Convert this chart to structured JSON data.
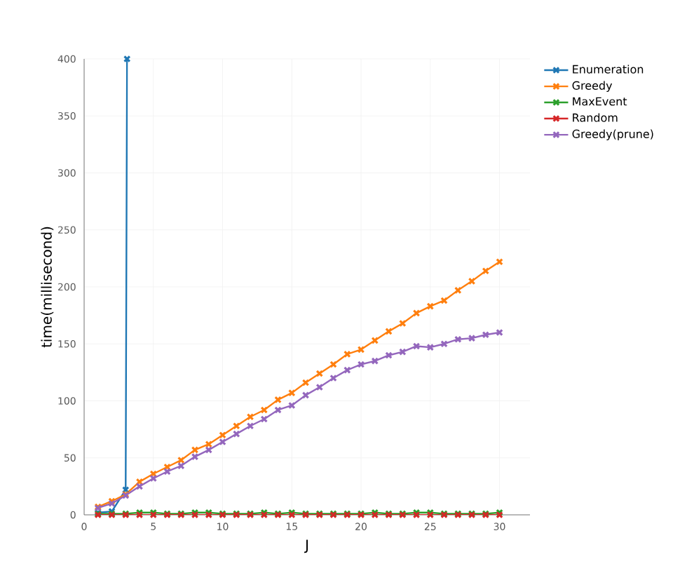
{
  "chart_data": {
    "type": "line",
    "xlabel": "J",
    "ylabel": "time(millisecond)",
    "xlim": [
      0,
      32.2
    ],
    "ylim": [
      0,
      400
    ],
    "xticks": [
      0,
      5,
      10,
      15,
      20,
      25,
      30
    ],
    "yticks": [
      0,
      50,
      100,
      150,
      200,
      250,
      300,
      350,
      400
    ],
    "grid": true,
    "legend": "top right",
    "marker": "cross",
    "line_style": "solid",
    "series": [
      {
        "name": "Enumeration",
        "color": "#1f77b4",
        "x": [
          1,
          2,
          3,
          3.1
        ],
        "values": [
          2,
          3,
          22,
          400
        ]
      },
      {
        "name": "Greedy",
        "color": "#ff7f0e",
        "x": [
          1,
          2,
          3,
          4,
          5,
          6,
          7,
          8,
          9,
          10,
          11,
          12,
          13,
          14,
          15,
          16,
          17,
          18,
          19,
          20,
          21,
          22,
          23,
          24,
          25,
          26,
          27,
          28,
          29,
          30
        ],
        "values": [
          7,
          12,
          18,
          29,
          36,
          42,
          48,
          57,
          62,
          70,
          78,
          86,
          92,
          101,
          107,
          116,
          124,
          132,
          141,
          145,
          153,
          161,
          168,
          177,
          183,
          188,
          197,
          205,
          214,
          222
        ]
      },
      {
        "name": "MaxEvent",
        "color": "#2ca02c",
        "x": [
          1,
          2,
          3,
          4,
          5,
          6,
          7,
          8,
          9,
          10,
          11,
          12,
          13,
          14,
          15,
          16,
          17,
          18,
          19,
          20,
          21,
          22,
          23,
          24,
          25,
          26,
          27,
          28,
          29,
          30
        ],
        "values": [
          1,
          1,
          1,
          2,
          2,
          1,
          1,
          2,
          2,
          1,
          1,
          1,
          2,
          1,
          2,
          1,
          1,
          1,
          1,
          1,
          2,
          1,
          1,
          2,
          2,
          1,
          1,
          1,
          1,
          2
        ]
      },
      {
        "name": "Random",
        "color": "#d62728",
        "x": [
          1,
          2,
          3,
          4,
          5,
          6,
          7,
          8,
          9,
          10,
          11,
          12,
          13,
          14,
          15,
          16,
          17,
          18,
          19,
          20,
          21,
          22,
          23,
          24,
          25,
          26,
          27,
          28,
          29,
          30
        ],
        "values": [
          0,
          0,
          0,
          0,
          0,
          0,
          0,
          0,
          0,
          0,
          0,
          0,
          0,
          0,
          0,
          0,
          0,
          0,
          0,
          0,
          0,
          0,
          0,
          0,
          0,
          0,
          0,
          0,
          0,
          0
        ]
      },
      {
        "name": "Greedy(prune)",
        "color": "#9467bd",
        "x": [
          1,
          2,
          3,
          4,
          5,
          6,
          7,
          8,
          9,
          10,
          11,
          12,
          13,
          14,
          15,
          16,
          17,
          18,
          19,
          20,
          21,
          22,
          23,
          24,
          25,
          26,
          27,
          28,
          29,
          30
        ],
        "values": [
          6,
          10,
          17,
          25,
          32,
          38,
          43,
          51,
          57,
          64,
          71,
          78,
          84,
          92,
          96,
          105,
          112,
          120,
          127,
          132,
          135,
          140,
          143,
          148,
          147,
          150,
          154,
          155,
          158,
          160
        ]
      }
    ]
  }
}
